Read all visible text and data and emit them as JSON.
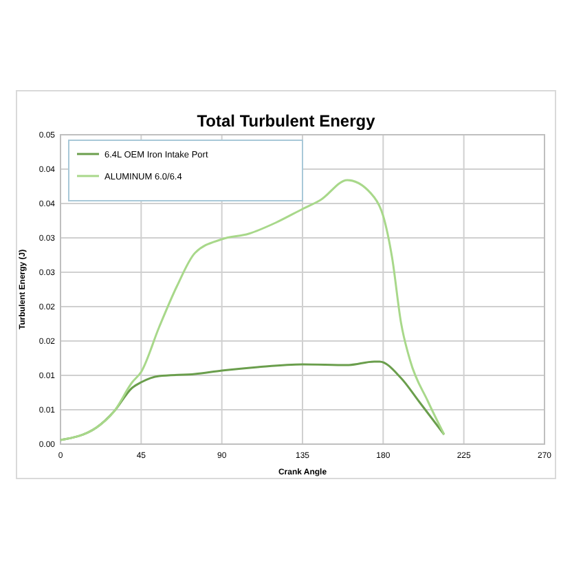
{
  "chart_data": {
    "type": "line",
    "title": "Total Turbulent Energy",
    "xlabel": "Crank Angle",
    "ylabel": "Turbulent Energy (J)",
    "xlim": [
      0,
      270
    ],
    "xticks": [
      0,
      45,
      90,
      135,
      180,
      225,
      270
    ],
    "ylim": [
      0,
      0.045
    ],
    "yticks": [
      {
        "value": 0,
        "label": "0.00"
      },
      {
        "value": 0.005,
        "label": "0.01"
      },
      {
        "value": 0.01,
        "label": "0.01"
      },
      {
        "value": 0.015,
        "label": "0.02"
      },
      {
        "value": 0.02,
        "label": "0.02"
      },
      {
        "value": 0.025,
        "label": "0.03"
      },
      {
        "value": 0.03,
        "label": "0.03"
      },
      {
        "value": 0.035,
        "label": "0.04"
      },
      {
        "value": 0.04,
        "label": "0.04"
      },
      {
        "value": 0.045,
        "label": "0.05"
      }
    ],
    "grid": true,
    "legend": "top left",
    "marker": "none",
    "line_style": "solid",
    "series": [
      {
        "name": "6.4L OEM Iron Intake Port",
        "color": "#6a9e4c",
        "x": [
          0,
          20,
          30,
          40,
          45,
          55,
          75,
          90,
          110,
          135,
          160,
          175,
          178,
          190,
          200,
          214
        ],
        "values": [
          0.0006,
          0.0024,
          0.0048,
          0.0082,
          0.009,
          0.0099,
          0.0102,
          0.0107,
          0.0112,
          0.0116,
          0.0115,
          0.012,
          0.012,
          0.0096,
          0.0062,
          0.0014
        ]
      },
      {
        "name": "ALUMINUM 6.0/6.4",
        "color": "#a8d88a",
        "x": [
          0,
          20,
          30,
          40,
          45,
          55,
          65,
          75,
          90,
          105,
          120,
          135,
          145,
          160,
          175,
          180,
          185,
          190,
          195,
          205,
          214
        ],
        "values": [
          0.0006,
          0.0024,
          0.0048,
          0.009,
          0.0105,
          0.017,
          0.023,
          0.0278,
          0.0298,
          0.0306,
          0.0322,
          0.0342,
          0.0355,
          0.0384,
          0.0359,
          0.0332,
          0.0271,
          0.0176,
          0.0122,
          0.0062,
          0.0014
        ]
      }
    ]
  }
}
